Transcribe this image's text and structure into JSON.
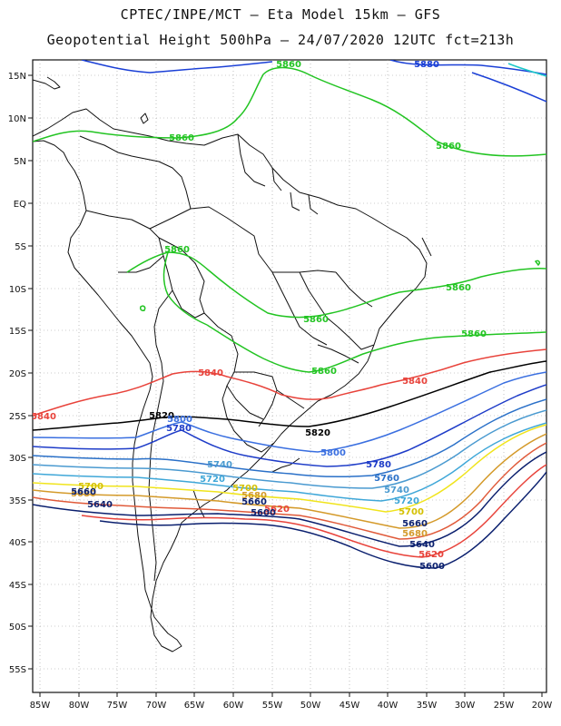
{
  "header": {
    "line1": "CPTEC/INPE/MCT –  Eta Model 15km – GFS",
    "line2": "Geopotential Height 500hPa – 24/07/2020 12UTC fct=213h"
  },
  "axes": {
    "lon_labels": [
      "85W",
      "80W",
      "75W",
      "70W",
      "65W",
      "60W",
      "55W",
      "50W",
      "45W",
      "40W",
      "35W",
      "30W",
      "25W",
      "20W"
    ],
    "lat_labels": [
      "15N",
      "10N",
      "5N",
      "EQ",
      "5S",
      "10S",
      "15S",
      "20S",
      "25S",
      "30S",
      "35S",
      "40S",
      "45S",
      "50S",
      "55S"
    ]
  },
  "colors": {
    "c5880": "#1a3fd6",
    "c5860": "#22c422",
    "c5840": "#e8433b",
    "c5820": "#000000",
    "c5800": "#3a6fe0",
    "c5780": "#1e3cc8",
    "c5760": "#2a70c8",
    "c5740": "#4a9ad0",
    "c5720": "#3fa7d8",
    "c5700": "#f0e41c",
    "c5680": "#d49a2a",
    "c5660": "#e05a3a",
    "c5640": "#0a1f6e",
    "c5620": "#e8433b",
    "c5600": "#0a1f6e",
    "cyan": "#1cc8c8"
  },
  "contours": {
    "c5880a": "5880",
    "c5860_top": "5860",
    "c5860_n": "5860",
    "c5860_ne": "5860",
    "c5860_amz": "5860",
    "c5860_e1": "5860",
    "c5860_e2": "5860",
    "c5860_br": "5860",
    "c5860_se": "5860",
    "c5840_a": "5840",
    "c5840_b": "5840",
    "c5840_w": "5840",
    "c5820_w": "5820",
    "c5820_c": "5820",
    "c5800_w": "5800",
    "c5800_e": "5800",
    "c5780_w": "5780",
    "c5780_e": "5780",
    "c5760_e": "5760",
    "c5740_w": "5740",
    "c5740_e": "5740",
    "c5720_w": "5720",
    "c5720_e": "5720",
    "c5700_w": "5700",
    "c5700_c": "5700",
    "c5700_e": "5700",
    "c5680_w": "5680",
    "c5680_c": "5680",
    "c5680_e": "5680",
    "c5660_w": "5660",
    "c5660_c": "5660",
    "c5660_e": "5660",
    "c5640_w": "5640",
    "c5640_e": "5640",
    "c5620_c": "5620",
    "c5620_e": "5620",
    "c5600_c": "5600",
    "c5600_e": "5600"
  }
}
